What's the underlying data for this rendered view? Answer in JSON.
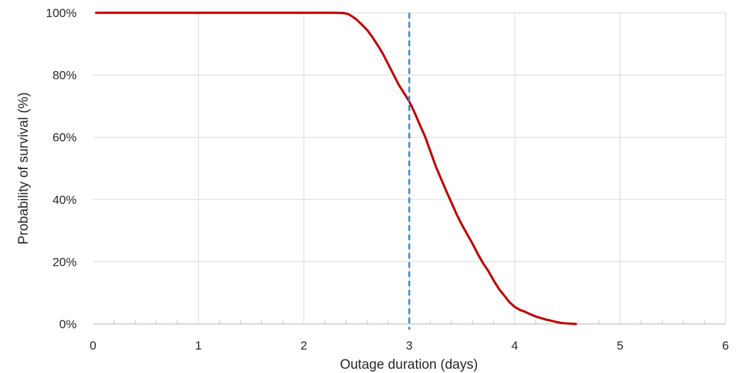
{
  "chart_data": {
    "type": "line",
    "title": "",
    "xlabel": "Outage duration (days)",
    "ylabel": "Probability of survival (%)",
    "xlim": [
      0,
      6
    ],
    "ylim": [
      0,
      100
    ],
    "x_ticks": [
      "0",
      "1",
      "2",
      "3",
      "4",
      "5",
      "6"
    ],
    "y_ticks": [
      "0%",
      "20%",
      "40%",
      "60%",
      "80%",
      "100%"
    ],
    "x_tick_values": [
      0,
      1,
      2,
      3,
      4,
      5,
      6
    ],
    "y_tick_values": [
      0,
      20,
      40,
      60,
      80,
      100
    ],
    "x_minor_step": 0.2,
    "grid": true,
    "legend": "none",
    "series": [
      {
        "color": "#c00000",
        "points": [
          [
            0.03,
            100
          ],
          [
            2.0,
            100
          ],
          [
            2.3,
            100
          ],
          [
            2.38,
            99.9
          ],
          [
            2.42,
            99.6
          ],
          [
            2.46,
            98.8
          ],
          [
            2.5,
            97.8
          ],
          [
            2.55,
            96.2
          ],
          [
            2.6,
            94.5
          ],
          [
            2.65,
            92.2
          ],
          [
            2.7,
            89.6
          ],
          [
            2.75,
            86.8
          ],
          [
            2.8,
            83.5
          ],
          [
            2.85,
            80.2
          ],
          [
            2.9,
            76.9
          ],
          [
            2.95,
            74.2
          ],
          [
            3.0,
            71.5
          ],
          [
            3.05,
            68.0
          ],
          [
            3.1,
            64.0
          ],
          [
            3.15,
            60.2
          ],
          [
            3.2,
            55.5
          ],
          [
            3.25,
            50.8
          ],
          [
            3.3,
            46.8
          ],
          [
            3.35,
            42.8
          ],
          [
            3.4,
            39.0
          ],
          [
            3.45,
            35.2
          ],
          [
            3.5,
            31.8
          ],
          [
            3.55,
            28.8
          ],
          [
            3.6,
            25.8
          ],
          [
            3.65,
            22.5
          ],
          [
            3.7,
            19.5
          ],
          [
            3.75,
            17.0
          ],
          [
            3.8,
            14.0
          ],
          [
            3.85,
            11.3
          ],
          [
            3.9,
            9.2
          ],
          [
            3.95,
            7.0
          ],
          [
            4.0,
            5.5
          ],
          [
            4.05,
            4.5
          ],
          [
            4.1,
            3.9
          ],
          [
            4.15,
            3.1
          ],
          [
            4.2,
            2.4
          ],
          [
            4.25,
            1.9
          ],
          [
            4.3,
            1.4
          ],
          [
            4.35,
            1.0
          ],
          [
            4.4,
            0.6
          ],
          [
            4.45,
            0.3
          ],
          [
            4.5,
            0.15
          ],
          [
            4.58,
            0.0
          ]
        ]
      }
    ],
    "reference_line": {
      "x": 3,
      "style": "dashed",
      "color": "#2e86d6"
    }
  }
}
